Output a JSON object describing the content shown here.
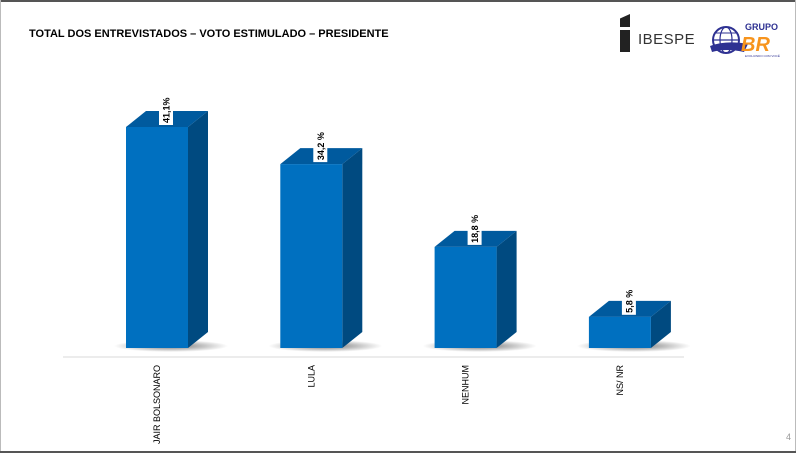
{
  "title": "TOTAL DOS ENTREVISTADOS – VOTO ESTIMULADO – PRESIDENTE",
  "page_number": "4",
  "logos": {
    "ibespe": "IBESPE",
    "grupo": "GRUPO",
    "br": "BR",
    "tagline": "EVOLUINDO COM VOCÊ"
  },
  "colors": {
    "bar_front": "#0070C0",
    "bar_top": "#005A9E",
    "bar_side": "#004A80",
    "logo_orange": "#F7941D",
    "logo_blue": "#2E3192"
  },
  "chart_data": {
    "type": "bar",
    "style": "3d-column",
    "title": "TOTAL DOS ENTREVISTADOS – VOTO ESTIMULADO – PRESIDENTE",
    "categories": [
      "JAIR BOLSONARO",
      "LULA",
      "NENHUM",
      "NS/ NR"
    ],
    "values": [
      41.1,
      34.2,
      18.8,
      5.8
    ],
    "data_labels": [
      "41,1%",
      "34,2 %",
      "18,8 %",
      "5,8 %"
    ],
    "unit": "%",
    "ylim": [
      0,
      45
    ],
    "grid": false,
    "legend": "none"
  }
}
